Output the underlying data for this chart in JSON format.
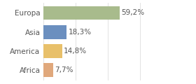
{
  "categories": [
    "Europa",
    "Asia",
    "America",
    "Africa"
  ],
  "values": [
    59.2,
    18.3,
    14.8,
    7.7
  ],
  "labels": [
    "59,2%",
    "18,3%",
    "14,8%",
    "7,7%"
  ],
  "bar_colors": [
    "#a8bb8c",
    "#6b8fbf",
    "#e8c06a",
    "#e0a87c"
  ],
  "xlim": [
    0,
    100
  ],
  "background_color": "#ffffff",
  "text_color": "#555555",
  "fontsize": 7.5,
  "grid_color": "#dddddd",
  "grid_xticks": [
    0,
    25,
    50,
    75,
    100
  ]
}
